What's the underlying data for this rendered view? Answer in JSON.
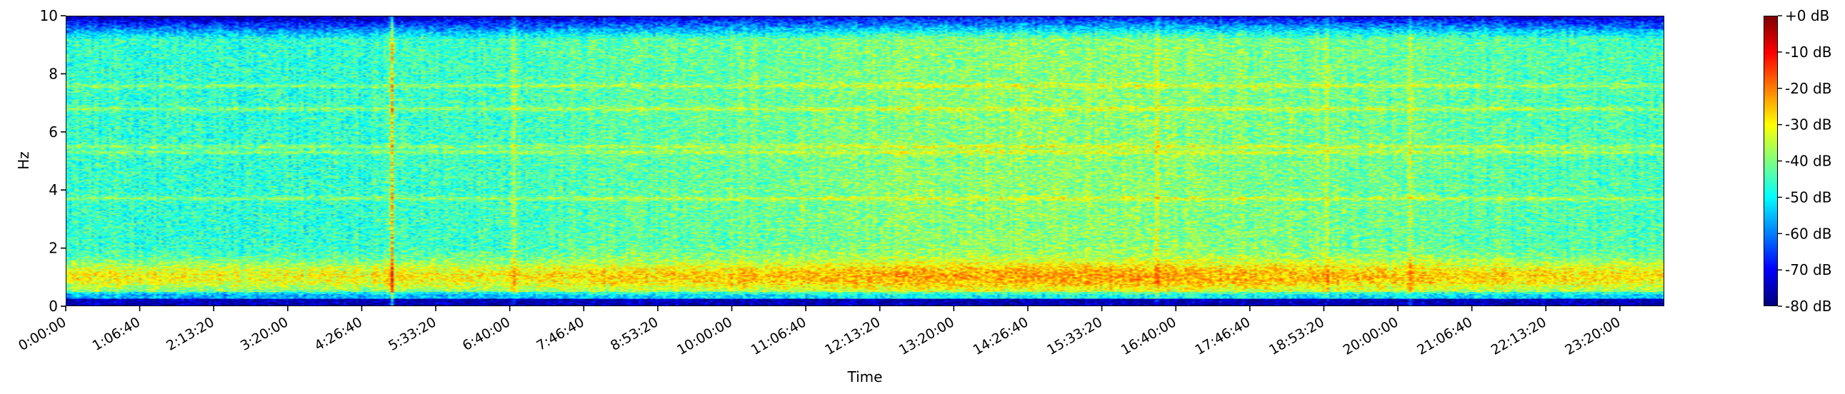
{
  "chart_data": {
    "type": "heatmap",
    "title": "",
    "xlabel": "Time",
    "ylabel": "Hz",
    "x_tick_labels": [
      "0:00:00",
      "1:06:40",
      "2:13:20",
      "3:20:00",
      "4:26:40",
      "5:33:20",
      "6:40:00",
      "7:46:40",
      "8:53:20",
      "10:00:00",
      "11:06:40",
      "12:13:20",
      "13:20:00",
      "14:26:40",
      "15:33:20",
      "16:40:00",
      "17:46:40",
      "18:53:20",
      "20:00:00",
      "21:06:40",
      "22:13:20",
      "23:20:00"
    ],
    "x_tick_seconds": [
      0,
      4000,
      8000,
      12000,
      16000,
      20000,
      24000,
      28000,
      32000,
      36000,
      40000,
      44000,
      48000,
      52000,
      56000,
      60000,
      64000,
      68000,
      72000,
      76000,
      80000,
      84000
    ],
    "xlim_seconds": [
      0,
      86400
    ],
    "y_ticks": [
      0,
      2,
      4,
      6,
      8,
      10
    ],
    "ylim": [
      0,
      10
    ],
    "colorbar": {
      "ticks": [
        "+0 dB",
        "-10 dB",
        "-20 dB",
        "-30 dB",
        "-40 dB",
        "-50 dB",
        "-60 dB",
        "-70 dB",
        "-80 dB"
      ],
      "range_db": [
        -80,
        0
      ],
      "colormap": "jet"
    },
    "features": {
      "background_level_db": -45,
      "low_frequency_band": {
        "hz": [
          0.4,
          1.6
        ],
        "level_db": -28
      },
      "upper_cutoff_hz": 9.2,
      "horizontal_lines_hz": [
        7.6,
        6.8,
        5.5,
        5.3,
        3.7
      ],
      "transient_events_seconds": [
        17600,
        24200,
        59000,
        68200,
        72700
      ]
    }
  }
}
